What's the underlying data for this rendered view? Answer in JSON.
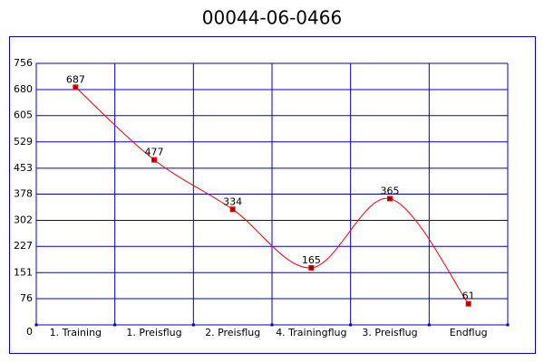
{
  "chart_data": {
    "type": "line",
    "title": "00044-06-0466",
    "categories": [
      "1. Training",
      "1. Preisflug",
      "2. Preisflug",
      "4. Trainingflug",
      "3. Preisflug",
      "Endflug"
    ],
    "values": [
      687,
      477,
      334,
      165,
      365,
      61
    ],
    "color": "#ff0000",
    "marker_color": "#990000",
    "grid_color": "#0000cc",
    "ylim": [
      0,
      756
    ],
    "yticks": [
      0,
      76,
      151,
      227,
      302,
      378,
      453,
      529,
      605,
      680,
      756
    ],
    "grid": true
  }
}
